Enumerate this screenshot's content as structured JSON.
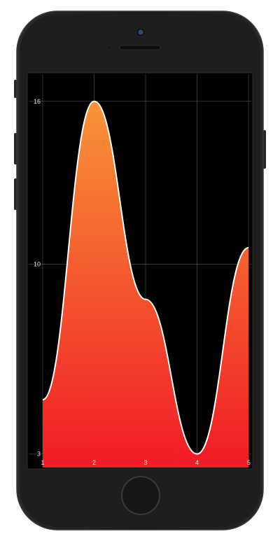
{
  "chart_data": {
    "type": "area",
    "x": [
      1,
      2,
      3,
      4,
      5
    ],
    "values": [
      5,
      16,
      8.7,
      3,
      10.6
    ],
    "xticks": [
      "1",
      "2",
      "3",
      "4",
      "5"
    ],
    "yticks": [
      "3",
      "10",
      "16"
    ],
    "ytick_values": [
      3,
      10,
      16
    ],
    "xlim": [
      1,
      5
    ],
    "ylim": [
      2.5,
      17
    ],
    "grid": true,
    "curve": "smooth",
    "fill_gradient": [
      "#f79438",
      "#f11b26"
    ],
    "line_color": "#ffffff",
    "background": "#000000"
  }
}
